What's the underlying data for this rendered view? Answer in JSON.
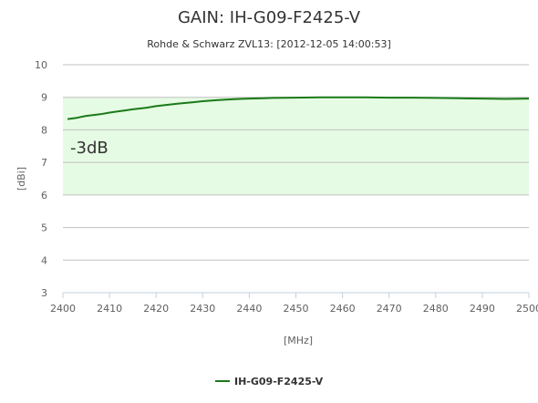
{
  "chart_data": {
    "type": "line",
    "title": "GAIN: IH-G09-F2425-V",
    "subtitle": "Rohde & Schwarz ZVL13: [2012-12-05 14:00:53]",
    "xlabel": "[MHz]",
    "ylabel": "[dBi]",
    "xlim": [
      2400,
      2500
    ],
    "ylim": [
      3,
      10
    ],
    "xticks": [
      "2400",
      "2410",
      "2420",
      "2430",
      "2440",
      "2450",
      "2460",
      "2470",
      "2480",
      "2490",
      "2500"
    ],
    "yticks": [
      "3",
      "4",
      "5",
      "6",
      "7",
      "8",
      "9",
      "10"
    ],
    "grid": "horizontal",
    "legend_placement": "bottom-center",
    "band": {
      "from": 6,
      "to": 9,
      "label": "-3dB",
      "color": "#e6fbe3"
    },
    "series": [
      {
        "name": "IH-G09-F2425-V",
        "color": "#1a7a1a",
        "x": [
          2401,
          2403,
          2405,
          2408,
          2410,
          2413,
          2415,
          2418,
          2420,
          2423,
          2425,
          2428,
          2430,
          2433,
          2435,
          2438,
          2440,
          2443,
          2445,
          2450,
          2455,
          2460,
          2465,
          2470,
          2475,
          2480,
          2485,
          2490,
          2495,
          2500
        ],
        "y": [
          8.33,
          8.37,
          8.43,
          8.48,
          8.53,
          8.59,
          8.63,
          8.68,
          8.73,
          8.78,
          8.81,
          8.85,
          8.88,
          8.91,
          8.93,
          8.95,
          8.96,
          8.97,
          8.98,
          8.99,
          9.0,
          9.0,
          9.0,
          8.99,
          8.99,
          8.98,
          8.97,
          8.96,
          8.95,
          8.96
        ]
      }
    ]
  }
}
